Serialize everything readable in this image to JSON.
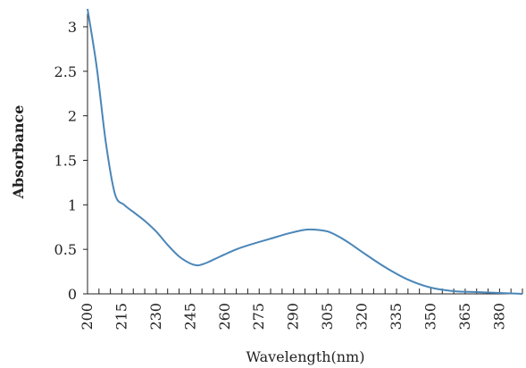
{
  "chart_data": {
    "type": "line",
    "title": "",
    "xlabel": "Wavelength(nm)",
    "ylabel": "Absorbance",
    "xlim": [
      200,
      390
    ],
    "ylim": [
      0,
      3.15
    ],
    "x_ticks": [
      "200",
      "215",
      "230",
      "245",
      "260",
      "275",
      "290",
      "305",
      "320",
      "335",
      "350",
      "365",
      "380"
    ],
    "y_ticks": [
      "0",
      "0.5",
      "1",
      "1.5",
      "2",
      "2.5",
      "3"
    ],
    "x_minor_step": 5,
    "grid": false,
    "line_color": "#4a86b8",
    "series": [
      {
        "x": [
          200,
          204,
          208,
          212,
          216,
          220,
          225,
          230,
          235,
          240,
          245,
          248,
          250,
          253,
          258,
          265,
          272,
          280,
          288,
          295,
          300,
          305,
          310,
          315,
          320,
          330,
          340,
          350,
          360,
          370,
          380,
          385,
          390
        ],
        "y": [
          3.2,
          2.55,
          1.7,
          1.12,
          1.0,
          0.92,
          0.82,
          0.7,
          0.55,
          0.42,
          0.34,
          0.32,
          0.33,
          0.36,
          0.42,
          0.5,
          0.56,
          0.62,
          0.68,
          0.72,
          0.72,
          0.7,
          0.64,
          0.56,
          0.47,
          0.3,
          0.16,
          0.07,
          0.03,
          0.02,
          0.01,
          0.005,
          0.0
        ]
      }
    ]
  }
}
